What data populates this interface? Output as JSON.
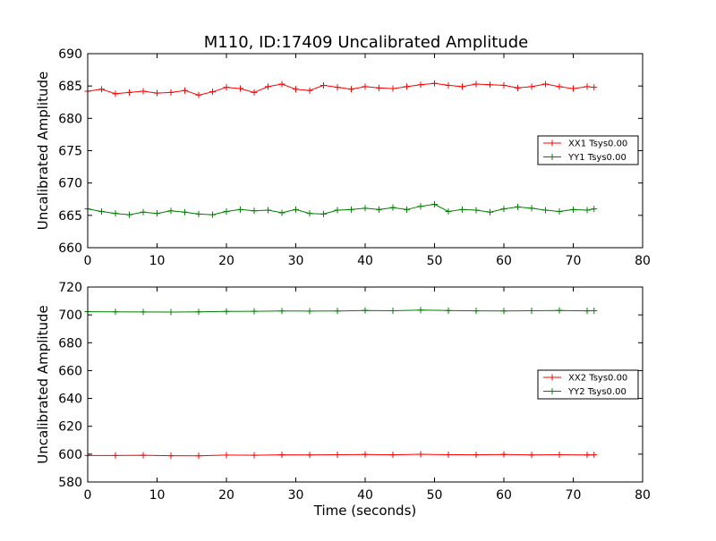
{
  "figure": {
    "title": "M110, ID:17409 Uncalibrated Amplitude"
  },
  "chart_data": [
    {
      "type": "line",
      "title": "M110, ID:17409 Uncalibrated Amplitude",
      "xlabel": "",
      "ylabel": "Uncalibrated Amplitude",
      "xlim": [
        0,
        80
      ],
      "ylim": [
        660,
        690
      ],
      "xticks": [
        "0",
        "10",
        "20",
        "30",
        "40",
        "50",
        "60",
        "70",
        "80"
      ],
      "yticks": [
        "660",
        "665",
        "670",
        "675",
        "680",
        "685",
        "690"
      ],
      "grid": false,
      "legend_position": "center-right",
      "marker": "plus",
      "series": [
        {
          "name": "XX1 Tsys0.00",
          "color": "#ff0000",
          "x": [
            0,
            2,
            4,
            6,
            8,
            10,
            12,
            14,
            16,
            18,
            20,
            22,
            24,
            26,
            28,
            30,
            32,
            34,
            36,
            38,
            40,
            42,
            44,
            46,
            48,
            50,
            52,
            54,
            56,
            58,
            60,
            62,
            64,
            66,
            68,
            70,
            72,
            73
          ],
          "y": [
            684.2,
            684.5,
            683.8,
            684.0,
            684.2,
            683.9,
            684.0,
            684.3,
            683.6,
            684.1,
            684.8,
            684.6,
            684.0,
            684.9,
            685.3,
            684.5,
            684.3,
            685.1,
            684.8,
            684.5,
            684.9,
            684.7,
            684.6,
            684.9,
            685.2,
            685.4,
            685.1,
            684.9,
            685.3,
            685.2,
            685.1,
            684.7,
            684.9,
            685.3,
            684.9,
            684.6,
            684.9,
            684.8
          ]
        },
        {
          "name": "YY1 Tsys0.00",
          "color": "#008000",
          "x": [
            0,
            2,
            4,
            6,
            8,
            10,
            12,
            14,
            16,
            18,
            20,
            22,
            24,
            26,
            28,
            30,
            32,
            34,
            36,
            38,
            40,
            42,
            44,
            46,
            48,
            50,
            52,
            54,
            56,
            58,
            60,
            62,
            64,
            66,
            68,
            70,
            72,
            73
          ],
          "y": [
            666.0,
            665.6,
            665.3,
            665.1,
            665.5,
            665.3,
            665.7,
            665.5,
            665.2,
            665.1,
            665.6,
            665.9,
            665.7,
            665.8,
            665.4,
            665.9,
            665.3,
            665.2,
            665.8,
            665.9,
            666.1,
            665.9,
            666.2,
            665.9,
            666.4,
            666.7,
            665.6,
            665.9,
            665.8,
            665.5,
            666.0,
            666.3,
            666.1,
            665.8,
            665.6,
            665.9,
            665.8,
            666.0
          ]
        }
      ]
    },
    {
      "type": "line",
      "title": "",
      "xlabel": "Time (seconds)",
      "ylabel": "Uncalibrated Amplitude",
      "xlim": [
        0,
        80
      ],
      "ylim": [
        580,
        720
      ],
      "xticks": [
        "0",
        "10",
        "20",
        "30",
        "40",
        "50",
        "60",
        "70",
        "80"
      ],
      "yticks": [
        "580",
        "600",
        "620",
        "640",
        "660",
        "680",
        "700",
        "720"
      ],
      "grid": false,
      "legend_position": "center-right",
      "marker": "plus",
      "series": [
        {
          "name": "XX2 Tsys0.00",
          "color": "#ff0000",
          "x": [
            0,
            4,
            8,
            12,
            16,
            20,
            24,
            28,
            32,
            36,
            40,
            44,
            48,
            52,
            56,
            60,
            64,
            68,
            72,
            73
          ],
          "y": [
            599.0,
            599.0,
            599.2,
            598.9,
            598.8,
            599.3,
            599.2,
            599.5,
            599.4,
            599.6,
            599.8,
            599.5,
            599.9,
            599.6,
            599.5,
            599.8,
            599.4,
            599.6,
            599.4,
            599.5
          ]
        },
        {
          "name": "YY2 Tsys0.00",
          "color": "#008000",
          "x": [
            0,
            4,
            8,
            12,
            16,
            20,
            24,
            28,
            32,
            36,
            40,
            44,
            48,
            52,
            56,
            60,
            64,
            68,
            72,
            73
          ],
          "y": [
            702.3,
            702.2,
            702.1,
            702.0,
            702.2,
            702.5,
            702.6,
            702.8,
            702.7,
            702.8,
            703.2,
            703.0,
            703.5,
            703.1,
            702.9,
            702.8,
            703.0,
            703.2,
            702.9,
            703.0
          ]
        }
      ]
    }
  ]
}
